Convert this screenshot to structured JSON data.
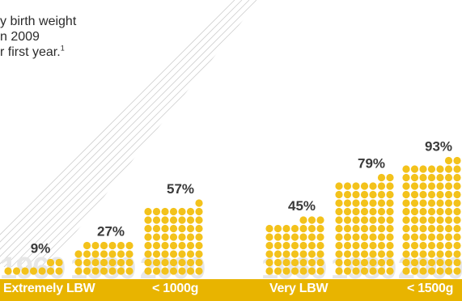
{
  "intro": {
    "lines": [
      "y birth weight",
      "n 2009",
      "r first year."
    ],
    "footnote": "1"
  },
  "colors": {
    "dot": "#f3c21b",
    "year_label": "#e7e7e7",
    "percent_label": "#3a3a3a",
    "legend_bar": "#e8b400",
    "hatch": "#cfcfcf"
  },
  "legend": {
    "group1_name": "Extremely LBW",
    "group1_threshold": "< 1000g",
    "group2_name": "Very LBW",
    "group2_threshold": "< 1500g"
  },
  "chart_data": [
    {
      "type": "bar",
      "style": "dot-stack",
      "group": "Extremely LBW",
      "threshold": "< 1000g",
      "categories": [
        "1960",
        "1980",
        "2000"
      ],
      "values": [
        9,
        27,
        57
      ],
      "value_labels": [
        "9%",
        "27%",
        "57%"
      ],
      "ylim": [
        0,
        100
      ]
    },
    {
      "type": "bar",
      "style": "dot-stack",
      "group": "Very LBW",
      "threshold": "< 1500g",
      "categories": [
        "1960",
        "1980",
        "2000"
      ],
      "values": [
        45,
        79,
        93
      ],
      "value_labels": [
        "45%",
        "79%",
        "93%"
      ],
      "ylim": [
        0,
        100
      ]
    }
  ]
}
